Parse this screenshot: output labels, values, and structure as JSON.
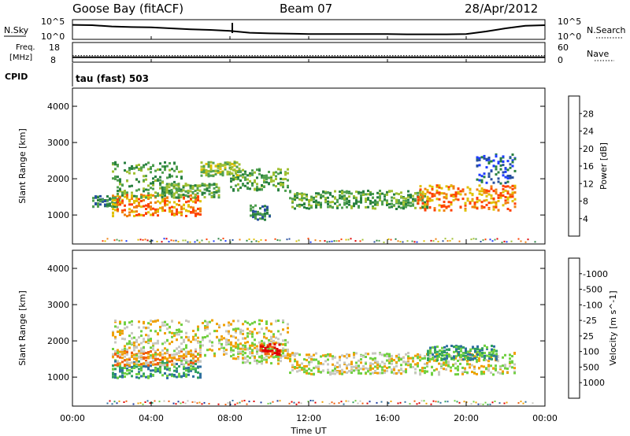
{
  "header": {
    "station": "Goose Bay (fitACF)",
    "beam": "Beam 07",
    "date": "28/Apr/2012"
  },
  "chart_data": [
    {
      "type": "line",
      "name": "status-noise",
      "labels_left": {
        "title": "N.Sky",
        "top": "10^5",
        "bottom": "10^0"
      },
      "labels_right": {
        "title": "N.Search",
        "top": "10^5",
        "bottom": "10^0"
      },
      "ylim_log": [
        0,
        5
      ],
      "x_hours": [
        0,
        1,
        2,
        3,
        4,
        5,
        6,
        7,
        8,
        9,
        10,
        11,
        12,
        13,
        14,
        15,
        16,
        17,
        18,
        19,
        20,
        21,
        22,
        23,
        24
      ],
      "y_log": [
        4.1,
        4.0,
        3.6,
        3.4,
        3.3,
        3.0,
        2.7,
        2.5,
        2.2,
        1.6,
        1.4,
        1.3,
        1.2,
        1.2,
        1.2,
        1.2,
        1.2,
        1.1,
        1.1,
        1.1,
        1.2,
        2.0,
        3.0,
        3.8,
        4.0
      ]
    },
    {
      "type": "line",
      "name": "status-frequency",
      "labels_left": {
        "title": "Freq.",
        "unit": "[MHz]",
        "top": "18",
        "bottom": "8"
      },
      "labels_right": {
        "title": "Nave",
        "top": "60",
        "bottom": "0"
      },
      "ylim": [
        8,
        18
      ],
      "freq_level": 10,
      "nave_level_fraction": 0.3
    },
    {
      "type": "label",
      "name": "status-cpid",
      "label": "CPID",
      "program": "tau (fast) 503"
    },
    {
      "type": "heatmap",
      "name": "power-panel",
      "ylabel": "Slant Range [km]",
      "yticks": [
        1000,
        2000,
        3000,
        4000
      ],
      "ylim": [
        200,
        4500
      ],
      "xlim_hours": [
        0,
        24
      ],
      "colorbar": {
        "label": "Power [dB]",
        "ticks": [
          "4",
          "8",
          "12",
          "16",
          "20",
          "24",
          "28"
        ],
        "colors": [
          "#1e3cff",
          "#2850a0",
          "#288040",
          "#50a050",
          "#a0c030",
          "#e0c000",
          "#f08010",
          "#ff4000",
          "#e00000"
        ]
      },
      "bands": [
        {
          "x": [
            1.0,
            2.4
          ],
          "center": 1400,
          "width": 150,
          "level": 2
        },
        {
          "x": [
            2.0,
            6.5
          ],
          "center": 1300,
          "width": 300,
          "level": 6
        },
        {
          "x": [
            2.0,
            5.5
          ],
          "center": 2000,
          "width": 500,
          "level": 3
        },
        {
          "x": [
            4.5,
            7.5
          ],
          "center": 1700,
          "width": 200,
          "level": 3
        },
        {
          "x": [
            6.5,
            8.5
          ],
          "center": 2300,
          "width": 200,
          "level": 4
        },
        {
          "x": [
            8.0,
            11.0
          ],
          "center": 2000,
          "width": 300,
          "level": 3
        },
        {
          "x": [
            9.0,
            10.0
          ],
          "center": 1100,
          "width": 200,
          "level": 2
        },
        {
          "x": [
            11.0,
            18.0
          ],
          "center": 1450,
          "width": 250,
          "level": 3
        },
        {
          "x": [
            17.5,
            22.5
          ],
          "center": 1500,
          "width": 350,
          "level": 6
        },
        {
          "x": [
            20.5,
            22.5
          ],
          "center": 2300,
          "width": 400,
          "level": 1
        }
      ]
    },
    {
      "type": "heatmap",
      "name": "velocity-panel",
      "ylabel": "Slant Range [km]",
      "yticks": [
        1000,
        2000,
        3000,
        4000
      ],
      "ylim": [
        200,
        4500
      ],
      "xlim_hours": [
        0,
        24
      ],
      "xticks": [
        "00:00",
        "04:00",
        "08:00",
        "12:00",
        "16:00",
        "20:00",
        "00:00"
      ],
      "xlabel": "Time UT",
      "colorbar": {
        "label": "Velocity [m s^-1]",
        "ticks": [
          "1000",
          "500",
          "100",
          "25",
          "-25",
          "-100",
          "-500",
          "-1000"
        ],
        "colors": [
          "#1a3aa0",
          "#3070a0",
          "#30a060",
          "#70d040",
          "#c8c8c0",
          "#f0a000",
          "#f06010",
          "#e00000"
        ]
      },
      "bands": [
        {
          "x": [
            2.0,
            6.5
          ],
          "center": 1250,
          "width": 250,
          "level": 2
        },
        {
          "x": [
            2.0,
            6.5
          ],
          "center": 1550,
          "width": 200,
          "level": 5
        },
        {
          "x": [
            2.0,
            11.0
          ],
          "center": 2100,
          "width": 500,
          "level": 4
        },
        {
          "x": [
            8.0,
            11.0
          ],
          "center": 1700,
          "width": 300,
          "level": 4
        },
        {
          "x": [
            9.5,
            10.5
          ],
          "center": 1800,
          "width": 150,
          "level": 7
        },
        {
          "x": [
            11.0,
            22.5
          ],
          "center": 1400,
          "width": 300,
          "level": 4
        },
        {
          "x": [
            18.0,
            21.5
          ],
          "center": 1700,
          "width": 200,
          "level": 2
        }
      ]
    }
  ]
}
